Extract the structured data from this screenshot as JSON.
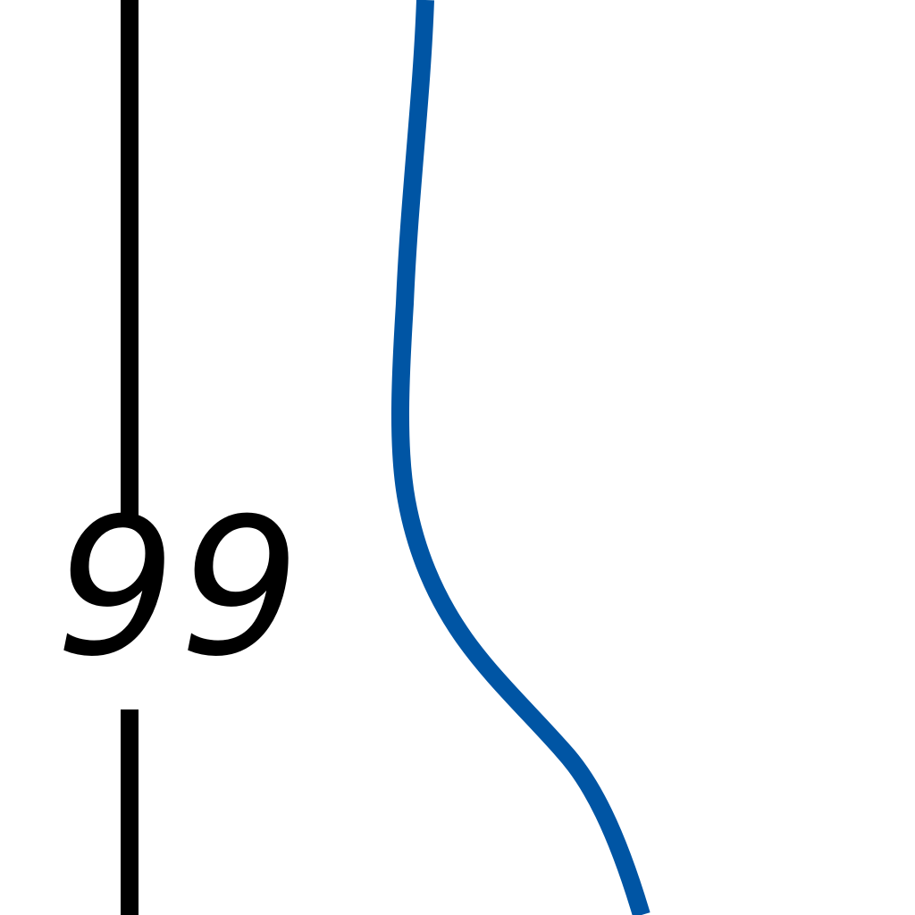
{
  "map": {
    "background_color": "#ffffff",
    "route_line": {
      "label": "99",
      "color": "#000000"
    },
    "waterway": {
      "color": "#0055a4"
    }
  }
}
